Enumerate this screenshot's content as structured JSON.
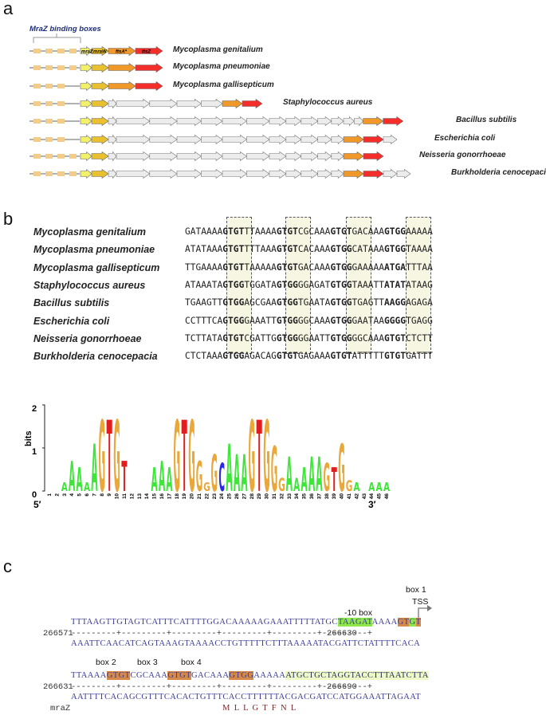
{
  "panels": {
    "a": "a",
    "b": "b",
    "c": "c"
  },
  "panel_a": {
    "binding_label": "MraZ binding boxes",
    "gene_labels": [
      "mraZ",
      "mraW",
      "ftsA*",
      "ftsZ"
    ],
    "colors": {
      "mraZ": "#f3f06a",
      "mraW": "#e8c030",
      "ftsA": "#f0982a",
      "ftsZ": "#f42e2a",
      "other": "#ececec",
      "box": "#f2cc8a"
    },
    "species": [
      {
        "name": "Mycoplasma genitalium",
        "boxes": 4,
        "others": 0,
        "tail": 0
      },
      {
        "name": "Mycoplasma pneumoniae",
        "boxes": 4,
        "others": 0,
        "tail": 0
      },
      {
        "name": "Mycoplasma gallisepticum",
        "boxes": 3,
        "others": 0,
        "tail": 0
      },
      {
        "name": "Staphylococcus aureus",
        "boxes": 3,
        "others": 5,
        "tail": 0
      },
      {
        "name": "Bacillus subtilis",
        "boxes": 3,
        "others": 14,
        "tail": 0
      },
      {
        "name": "Escherichia coli",
        "boxes": 3,
        "others": 12,
        "tail": 1
      },
      {
        "name": "Neisseria gonorrhoeae",
        "boxes": 4,
        "others": 12,
        "tail": 0
      },
      {
        "name": "Burkholderia cenocepacia",
        "boxes": 4,
        "others": 12,
        "tail": 2
      }
    ]
  },
  "panel_b": {
    "alignment": [
      {
        "species": "Mycoplasma genitalium",
        "seq": [
          "GATAAAA",
          "GTGT",
          "TTAAAA",
          "GTGT",
          "CGCAAA",
          "GTGT",
          "GACAAA",
          "GTGG",
          "AAAAA"
        ]
      },
      {
        "species": "Mycoplasma pneumoniae",
        "seq": [
          "ATATAAA",
          "GTGT",
          "TTTAAA",
          "GTGT",
          "CACAAA",
          "GTGG",
          "CATAAA",
          "GTGG",
          "TAAAA"
        ]
      },
      {
        "species": "Mycoplasma gallisepticum",
        "seq": [
          "TTGAAAA",
          "GTGT",
          "TAAAAA",
          "GTGT",
          "GACAAA",
          "GTGG",
          "GAAAAA",
          "ATGA",
          "TTTAA"
        ]
      },
      {
        "species": "Staphylococcus aureus",
        "seq": [
          "ATAAATA",
          "GTGG",
          "TGGATA",
          "GTGG",
          "GGAGAT",
          "GTGG",
          "TAAATT",
          "ATAT",
          "ATAAG"
        ]
      },
      {
        "species": "Bacillus subtilis",
        "seq": [
          "TGAAGTT",
          "GTGG",
          "AGCGAA",
          "GTGG",
          "TGAATA",
          "GTGG",
          "TGAGTT",
          "AAGG",
          "AGAGA"
        ]
      },
      {
        "species": "Escherichia coli",
        "seq": [
          "CCTTTCA",
          "GTGG",
          "GAAATT",
          "GTGG",
          "GGCAAA",
          "GTGG",
          "GAATAA",
          "GGGG",
          "TGAGG"
        ]
      },
      {
        "species": "Neisseria gonorrhoeae",
        "seq": [
          "TCTTATA",
          "GTGT",
          "CGATTG",
          "GTGG",
          "GGAATT",
          "GTGG",
          "GGCAAA",
          "GTGT",
          "CTCTT"
        ]
      },
      {
        "species": "Burkholderia cenocepacia",
        "seq": [
          "CTCTAAA",
          "GTGG",
          "AGACAG",
          "GTGT",
          "GAGAAA",
          "GTGT",
          "ATTTTT",
          "GTGT",
          "GATTT"
        ]
      }
    ],
    "logo": {
      "ylabel": "bits",
      "yticks": [
        "2",
        "1",
        "0"
      ],
      "left_end": "5′",
      "right_end": "3′",
      "positions": [
        "1",
        "2",
        "3",
        "4",
        "5",
        "6",
        "7",
        "8",
        "9",
        "10",
        "11",
        "12",
        "13",
        "14",
        "15",
        "16",
        "17",
        "18",
        "19",
        "20",
        "21",
        "22",
        "23",
        "24",
        "25",
        "26",
        "27",
        "28",
        "29",
        "30",
        "31",
        "32",
        "33",
        "34",
        "35",
        "36",
        "37",
        "38",
        "39",
        "40",
        "41",
        "42",
        "43",
        "44",
        "45",
        "46"
      ]
    }
  },
  "chart_data": {
    "type": "sequence_logo",
    "ylabel": "bits",
    "ylim": [
      0,
      2
    ],
    "positions": [
      1,
      2,
      3,
      4,
      5,
      6,
      7,
      8,
      9,
      10,
      11,
      12,
      13,
      14,
      15,
      16,
      17,
      18,
      19,
      20,
      21,
      22,
      23,
      24,
      25,
      26,
      27,
      28,
      29,
      30,
      31,
      32,
      33,
      34,
      35,
      36,
      37,
      38,
      39,
      40,
      41,
      42,
      43,
      44,
      45,
      46
    ],
    "dominant": [
      "",
      "",
      "A",
      "A",
      "A",
      "A",
      "A",
      "G",
      "T",
      "G",
      "T",
      "",
      "",
      "",
      "A",
      "A",
      "A",
      "G",
      "T",
      "G",
      "G",
      "G",
      "G",
      "C",
      "A",
      "A",
      "A",
      "G",
      "T",
      "G",
      "G",
      "G",
      "A",
      "A",
      "A",
      "A",
      "A",
      "G",
      "T",
      "G",
      "G",
      "A",
      "",
      "A",
      "A",
      "A"
    ],
    "heights": [
      0,
      0,
      0.2,
      0.7,
      0.55,
      0.2,
      1.1,
      1.65,
      1.65,
      1.65,
      0.7,
      0,
      0.05,
      0,
      0.55,
      0.7,
      0.55,
      1.65,
      1.65,
      1.65,
      0.7,
      0.2,
      0.85,
      0.65,
      1.1,
      0.85,
      0.85,
      1.65,
      1.65,
      1.65,
      1.05,
      0.3,
      0.8,
      0.3,
      0.55,
      0.8,
      0.8,
      0.65,
      0.55,
      1.1,
      0.25,
      0.2,
      0.05,
      0.2,
      0.2,
      0.2
    ],
    "colors": {
      "A": "#3ee63a",
      "C": "#2a2ae6",
      "G": "#eaa83a",
      "T": "#e01e1e"
    }
  },
  "panel_c": {
    "row1": {
      "top": "TTTAAGTTGTAGTCATTTCATTTTGGACAAAAAGAAATTTTTATGC",
      "minus10": "TAAGAT",
      "mid": "AAAA",
      "box1a": "GT",
      "box1b": "G",
      "box1c": "T",
      "start": "266571",
      "end": "266630",
      "ruler": "---------+---------+---------+---------+---------+---------+",
      "bottom": "AAATTCAACATCAGTAAAGTAAAACCTGTTTTTCTTTAAAAATACGATTCTATTTTCACA",
      "label_minus10": "-10 box",
      "label_box1": "box 1",
      "label_tss": "TSS"
    },
    "row2": {
      "p1": "TTAAAA",
      "b2": "GTGT",
      "p2": "CGCAAA",
      "b3": "GTGT",
      "p3": "GACAAA",
      "b4": "GTGG",
      "p4": "AAAAA",
      "orf": "ATGCTGCTAGGTACCTTTAATCTTA",
      "start": "266631",
      "end": "266690",
      "ruler": "---------+---------+---------+---------+---------+---------+",
      "bottom": "AATTTTCACAGCGTTTCACACTGTTTCACCTTTTTTACGACGATCCATGGAAATTAGAAT",
      "label_box2": "box 2",
      "label_box3": "box 3",
      "label_box4": "box 4",
      "gene": "mraZ",
      "protein": "M  L  L  G  T  F  N  L"
    }
  }
}
